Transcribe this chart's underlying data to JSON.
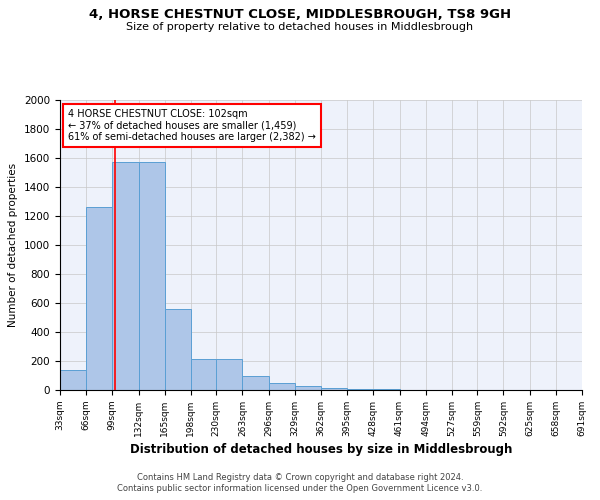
{
  "title": "4, HORSE CHESTNUT CLOSE, MIDDLESBROUGH, TS8 9GH",
  "subtitle": "Size of property relative to detached houses in Middlesbrough",
  "xlabel": "Distribution of detached houses by size in Middlesbrough",
  "ylabel": "Number of detached properties",
  "footer_line1": "Contains HM Land Registry data © Crown copyright and database right 2024.",
  "footer_line2": "Contains public sector information licensed under the Open Government Licence v3.0.",
  "annotation_line1": "4 HORSE CHESTNUT CLOSE: 102sqm",
  "annotation_line2": "← 37% of detached houses are smaller (1,459)",
  "annotation_line3": "61% of semi-detached houses are larger (2,382) →",
  "bar_color": "#aec6e8",
  "bar_edge_color": "#5a9fd4",
  "red_line_x": 102,
  "bin_starts": [
    33,
    66,
    99,
    132,
    165,
    198,
    230,
    263,
    296,
    329,
    362,
    395,
    428,
    461,
    494,
    527,
    559,
    592,
    625,
    658
  ],
  "bin_labels": [
    "33sqm",
    "66sqm",
    "99sqm",
    "132sqm",
    "165sqm",
    "198sqm",
    "230sqm",
    "263sqm",
    "296sqm",
    "329sqm",
    "362sqm",
    "395sqm",
    "428sqm",
    "461sqm",
    "494sqm",
    "527sqm",
    "559sqm",
    "592sqm",
    "625sqm",
    "658sqm",
    "691sqm"
  ],
  "bar_heights": [
    140,
    1265,
    1570,
    1570,
    560,
    215,
    215,
    100,
    50,
    25,
    12,
    10,
    5,
    3,
    2,
    1,
    1,
    1,
    0,
    0
  ],
  "bin_width": 33,
  "xlim_left": 33,
  "xlim_right": 691,
  "ylim": [
    0,
    2000
  ],
  "yticks": [
    0,
    200,
    400,
    600,
    800,
    1000,
    1200,
    1400,
    1600,
    1800,
    2000
  ],
  "xtick_positions": [
    33,
    66,
    99,
    132,
    165,
    198,
    230,
    263,
    296,
    329,
    362,
    395,
    428,
    461,
    494,
    527,
    559,
    592,
    625,
    658,
    691
  ],
  "background_color": "#eef2fb",
  "grid_color": "#c8c8c8",
  "title_fontsize": 9.5,
  "subtitle_fontsize": 8,
  "ylabel_fontsize": 7.5,
  "xlabel_fontsize": 8.5,
  "tick_fontsize": 6.5,
  "ytick_fontsize": 7.5,
  "footer_fontsize": 6,
  "annotation_fontsize": 7
}
